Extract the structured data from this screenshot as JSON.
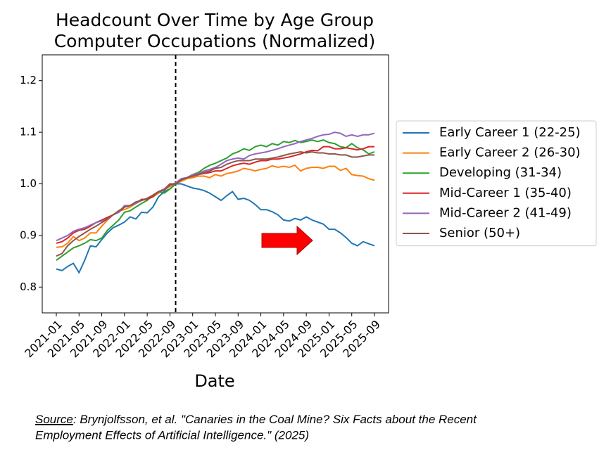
{
  "chart_data": {
    "type": "line",
    "title": [
      "Headcount Over Time by Age Group",
      "Computer Occupations (Normalized)"
    ],
    "xlabel": "Date",
    "x": [
      "2021-01",
      "2021-02",
      "2021-03",
      "2021-04",
      "2021-05",
      "2021-06",
      "2021-07",
      "2021-08",
      "2021-09",
      "2021-10",
      "2021-11",
      "2021-12",
      "2022-01",
      "2022-02",
      "2022-03",
      "2022-04",
      "2022-05",
      "2022-06",
      "2022-07",
      "2022-08",
      "2022-09",
      "2022-10",
      "2022-11",
      "2022-12",
      "2023-01",
      "2023-02",
      "2023-03",
      "2023-04",
      "2023-05",
      "2023-06",
      "2023-07",
      "2023-08",
      "2023-09",
      "2023-10",
      "2023-11",
      "2023-12",
      "2024-01",
      "2024-02",
      "2024-03",
      "2024-04",
      "2024-05",
      "2024-06",
      "2024-07",
      "2024-08",
      "2024-09",
      "2024-10",
      "2024-11",
      "2024-12",
      "2025-01",
      "2025-02",
      "2025-03",
      "2025-04",
      "2025-05",
      "2025-06",
      "2025-07",
      "2025-08",
      "2025-09"
    ],
    "xticks": [
      "2021-01",
      "2021-05",
      "2021-09",
      "2022-01",
      "2022-05",
      "2022-09",
      "2023-01",
      "2023-05",
      "2023-09",
      "2024-01",
      "2024-05",
      "2024-09",
      "2025-01",
      "2025-05",
      "2025-09"
    ],
    "ylim": [
      0.75,
      1.25
    ],
    "yticks": [
      0.8,
      0.9,
      {
        "value": 1.0,
        "label": "1.0"
      },
      1.1,
      1.2
    ],
    "grid": false,
    "legend": "outside right",
    "vline": "2022-10",
    "series": [
      {
        "name": "Early Career 1 (22-25)",
        "color": "#1f77b4",
        "values": [
          0.835,
          0.832,
          0.84,
          0.846,
          0.828,
          0.852,
          0.88,
          0.878,
          0.892,
          0.905,
          0.915,
          0.92,
          0.926,
          0.936,
          0.932,
          0.945,
          0.944,
          0.955,
          0.975,
          0.985,
          0.99,
          1.0,
          1.0,
          0.996,
          0.992,
          0.99,
          0.987,
          0.982,
          0.975,
          0.968,
          0.977,
          0.985,
          0.97,
          0.972,
          0.968,
          0.96,
          0.95,
          0.95,
          0.946,
          0.94,
          0.93,
          0.928,
          0.933,
          0.93,
          0.936,
          0.93,
          0.926,
          0.922,
          0.912,
          0.912,
          0.905,
          0.896,
          0.885,
          0.88,
          0.888,
          0.884,
          0.88
        ]
      },
      {
        "name": "Early Career 2 (26-30)",
        "color": "#ff7f0e",
        "values": [
          0.877,
          0.878,
          0.885,
          0.898,
          0.89,
          0.895,
          0.905,
          0.905,
          0.918,
          0.93,
          0.94,
          0.948,
          0.95,
          0.955,
          0.962,
          0.968,
          0.97,
          0.975,
          0.982,
          0.988,
          0.995,
          1.0,
          1.005,
          1.01,
          1.012,
          1.015,
          1.015,
          1.012,
          1.018,
          1.015,
          1.02,
          1.022,
          1.025,
          1.03,
          1.028,
          1.025,
          1.028,
          1.03,
          1.035,
          1.032,
          1.034,
          1.032,
          1.036,
          1.025,
          1.03,
          1.032,
          1.032,
          1.03,
          1.034,
          1.034,
          1.026,
          1.03,
          1.018,
          1.016,
          1.015,
          1.01,
          1.007
        ]
      },
      {
        "name": "Developing (31-34)",
        "color": "#2ca02c",
        "values": [
          0.852,
          0.86,
          0.868,
          0.876,
          0.88,
          0.885,
          0.892,
          0.89,
          0.895,
          0.91,
          0.92,
          0.93,
          0.945,
          0.948,
          0.955,
          0.962,
          0.968,
          0.978,
          0.985,
          0.982,
          0.99,
          1.0,
          1.01,
          1.012,
          1.018,
          1.022,
          1.03,
          1.036,
          1.04,
          1.045,
          1.05,
          1.058,
          1.062,
          1.068,
          1.065,
          1.072,
          1.075,
          1.072,
          1.078,
          1.075,
          1.082,
          1.08,
          1.084,
          1.08,
          1.082,
          1.085,
          1.082,
          1.085,
          1.08,
          1.078,
          1.072,
          1.07,
          1.078,
          1.07,
          1.066,
          1.058,
          1.062
        ]
      },
      {
        "name": "Mid-Career 1 (35-40)",
        "color": "#d62728",
        "values": [
          0.885,
          0.888,
          0.895,
          0.905,
          0.91,
          0.912,
          0.918,
          0.925,
          0.93,
          0.935,
          0.94,
          0.945,
          0.955,
          0.958,
          0.962,
          0.97,
          0.97,
          0.975,
          0.985,
          0.99,
          1.0,
          1.0,
          1.008,
          1.012,
          1.015,
          1.018,
          1.02,
          1.022,
          1.025,
          1.025,
          1.03,
          1.035,
          1.038,
          1.04,
          1.038,
          1.042,
          1.045,
          1.045,
          1.048,
          1.048,
          1.05,
          1.052,
          1.055,
          1.058,
          1.062,
          1.065,
          1.064,
          1.072,
          1.072,
          1.068,
          1.068,
          1.07,
          1.068,
          1.066,
          1.068,
          1.072,
          1.072
        ]
      },
      {
        "name": "Mid-Career 2 (41-49)",
        "color": "#9467bd",
        "values": [
          0.89,
          0.895,
          0.9,
          0.908,
          0.912,
          0.915,
          0.92,
          0.925,
          0.928,
          0.932,
          0.94,
          0.945,
          0.958,
          0.958,
          0.962,
          0.968,
          0.972,
          0.978,
          0.985,
          0.99,
          0.998,
          1.002,
          1.01,
          1.012,
          1.018,
          1.02,
          1.025,
          1.028,
          1.032,
          1.038,
          1.045,
          1.048,
          1.05,
          1.048,
          1.055,
          1.058,
          1.06,
          1.062,
          1.065,
          1.068,
          1.072,
          1.075,
          1.078,
          1.082,
          1.085,
          1.088,
          1.092,
          1.095,
          1.096,
          1.1,
          1.098,
          1.092,
          1.095,
          1.092,
          1.095,
          1.095,
          1.098
        ]
      },
      {
        "name": "Senior (50+)",
        "color": "#8c564b",
        "values": [
          0.86,
          0.865,
          0.88,
          0.89,
          0.898,
          0.905,
          0.912,
          0.918,
          0.925,
          0.932,
          0.94,
          0.948,
          0.955,
          0.958,
          0.965,
          0.968,
          0.972,
          0.978,
          0.985,
          0.988,
          0.998,
          1.0,
          1.008,
          1.012,
          1.015,
          1.018,
          1.022,
          1.025,
          1.03,
          1.032,
          1.038,
          1.042,
          1.045,
          1.045,
          1.045,
          1.048,
          1.048,
          1.048,
          1.05,
          1.052,
          1.055,
          1.058,
          1.06,
          1.062,
          1.06,
          1.062,
          1.06,
          1.06,
          1.058,
          1.058,
          1.056,
          1.056,
          1.052,
          1.052,
          1.054,
          1.056,
          1.056
        ]
      }
    ],
    "source": {
      "label": "Source",
      "lines": [
        ": Brynjolfsson, et al. \"Canaries in the Coal Mine? Six Facts about the Recent",
        "Employment Effects of Artificial Intelligence.\" (2025)"
      ]
    }
  }
}
